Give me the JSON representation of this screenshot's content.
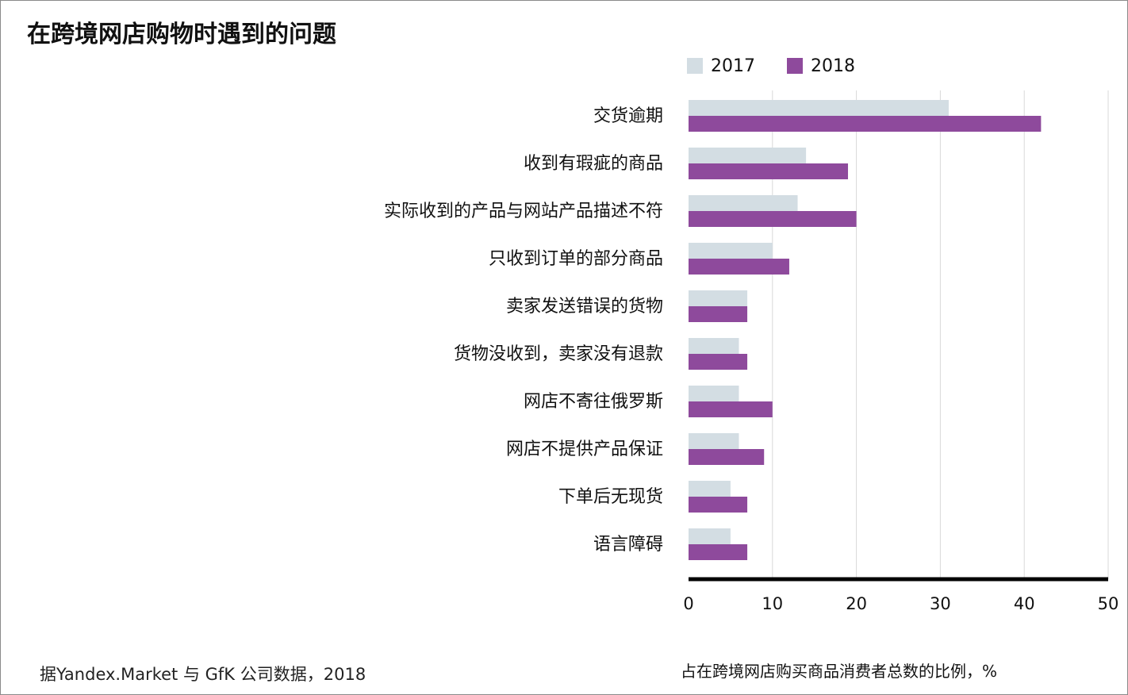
{
  "chart_data": {
    "type": "bar",
    "orientation": "horizontal",
    "title": "在跨境网店购物时遇到的问题",
    "xlabel": "占在跨境网店购买商品消费者总数的比例，%",
    "source": "据Yandex.Market 与 GfK 公司数据，2018",
    "categories": [
      "交货逾期",
      "收到有瑕疵的商品",
      "实际收到的产品与网站产品描述不符",
      "只收到订单的部分商品",
      "卖家发送错误的货物",
      "货物没收到，卖家没有退款",
      "网店不寄往俄罗斯",
      "网店不提供产品保证",
      "下单后无现货",
      "语言障碍"
    ],
    "series": [
      {
        "name": "2017",
        "color": "#d3dde3",
        "values": [
          31,
          14,
          13,
          10,
          7,
          6,
          6,
          6,
          5,
          5
        ]
      },
      {
        "name": "2018",
        "color": "#8e4a9c",
        "values": [
          42,
          19,
          20,
          12,
          7,
          7,
          10,
          9,
          7,
          7
        ]
      }
    ],
    "xlim": [
      0,
      50
    ],
    "xticks": [
      0,
      10,
      20,
      30,
      40,
      50
    ],
    "grid": true,
    "legend_position": "top"
  }
}
